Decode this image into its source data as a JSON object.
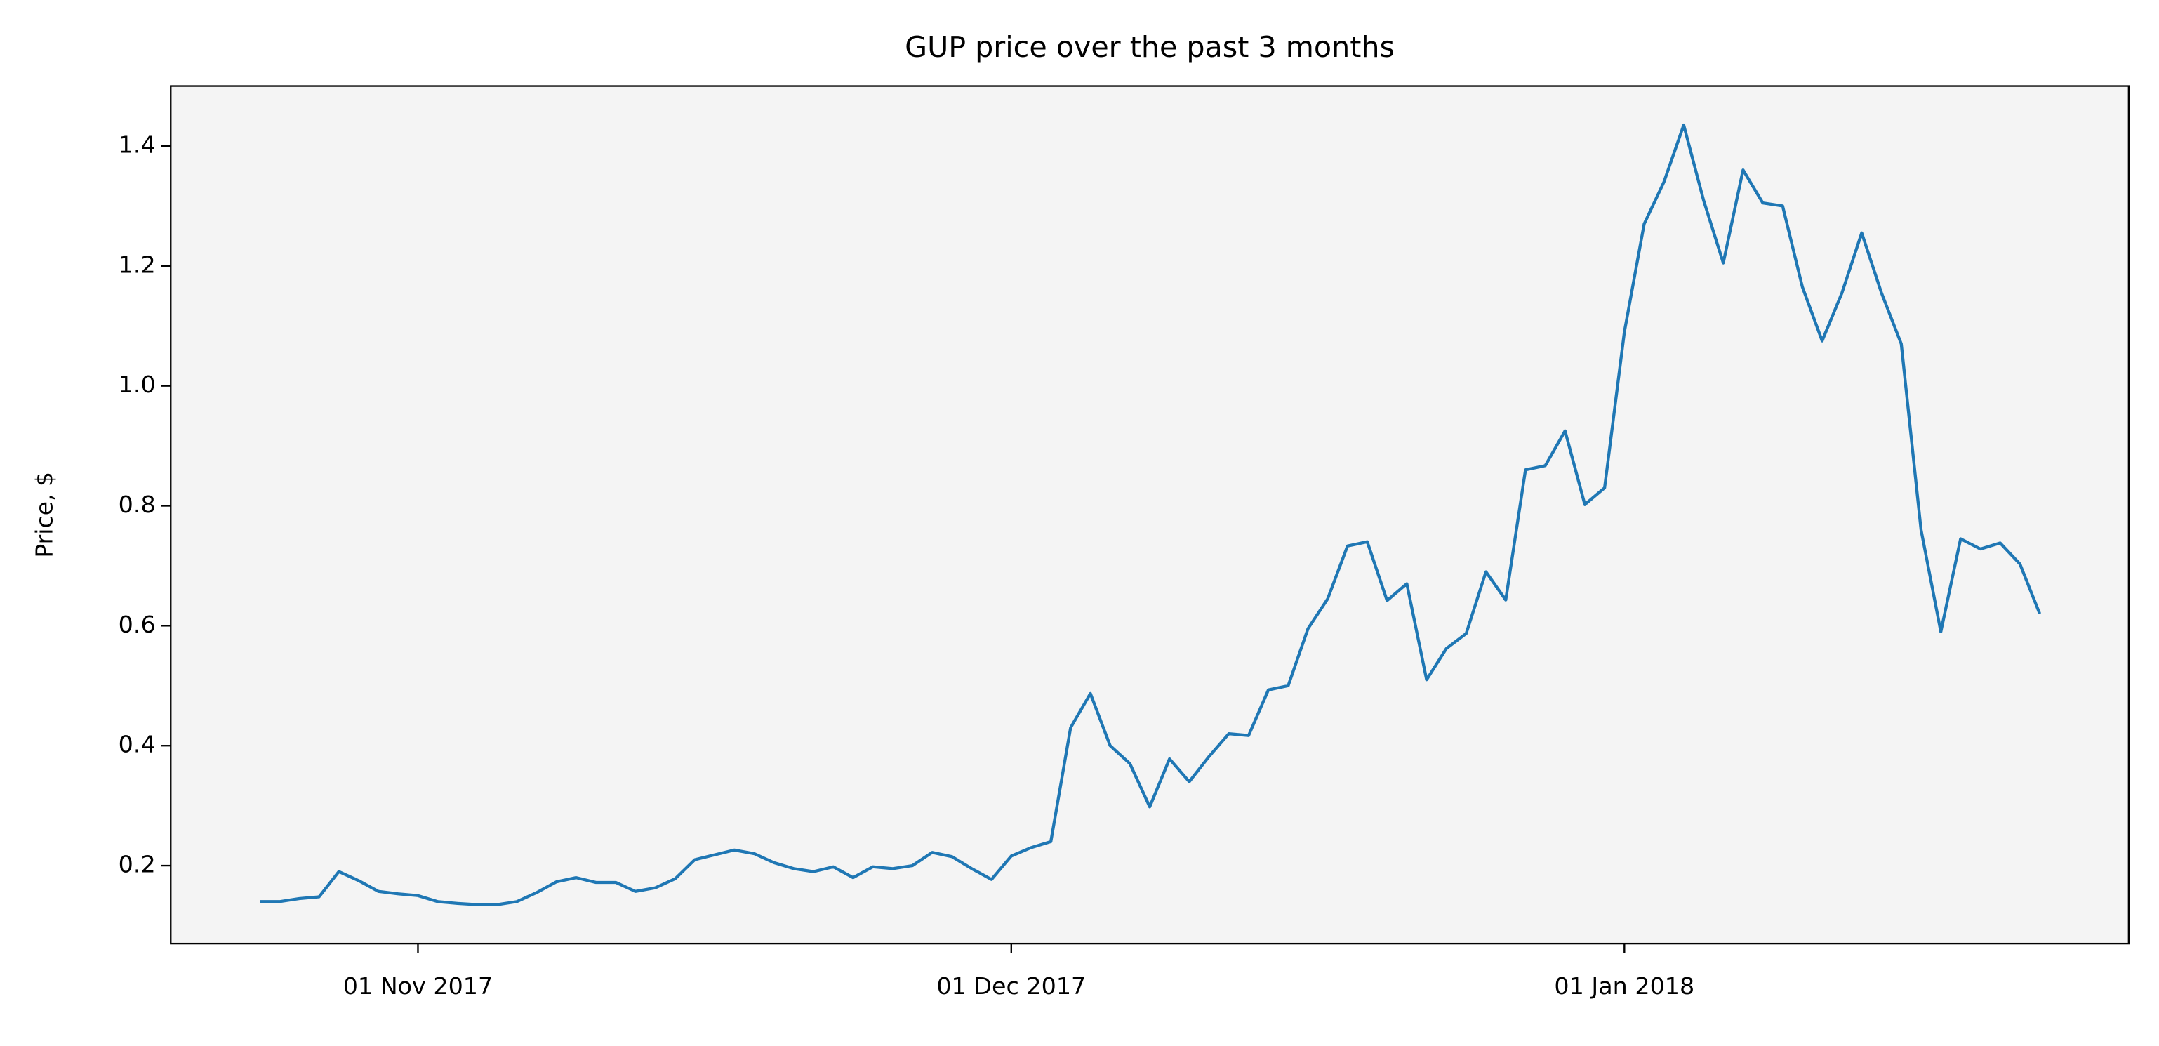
{
  "chart_data": {
    "type": "line",
    "title": "GUP price over the past 3 months",
    "y_label": "Price, $",
    "x": [
      "2017-10-24",
      "2017-10-25",
      "2017-10-26",
      "2017-10-27",
      "2017-10-28",
      "2017-10-29",
      "2017-10-30",
      "2017-10-31",
      "2017-11-01",
      "2017-11-02",
      "2017-11-03",
      "2017-11-04",
      "2017-11-05",
      "2017-11-06",
      "2017-11-07",
      "2017-11-08",
      "2017-11-09",
      "2017-11-10",
      "2017-11-11",
      "2017-11-12",
      "2017-11-13",
      "2017-11-14",
      "2017-11-15",
      "2017-11-16",
      "2017-11-17",
      "2017-11-18",
      "2017-11-19",
      "2017-11-20",
      "2017-11-21",
      "2017-11-22",
      "2017-11-23",
      "2017-11-24",
      "2017-11-25",
      "2017-11-26",
      "2017-11-27",
      "2017-11-28",
      "2017-11-29",
      "2017-11-30",
      "2017-12-01",
      "2017-12-02",
      "2017-12-03",
      "2017-12-04",
      "2017-12-05",
      "2017-12-06",
      "2017-12-07",
      "2017-12-08",
      "2017-12-09",
      "2017-12-10",
      "2017-12-11",
      "2017-12-12",
      "2017-12-13",
      "2017-12-14",
      "2017-12-15",
      "2017-12-16",
      "2017-12-17",
      "2017-12-18",
      "2017-12-19",
      "2017-12-20",
      "2017-12-21",
      "2017-12-22",
      "2017-12-23",
      "2017-12-24",
      "2017-12-25",
      "2017-12-26",
      "2017-12-27",
      "2017-12-28",
      "2017-12-29",
      "2017-12-30",
      "2017-12-31",
      "2018-01-01",
      "2018-01-02",
      "2018-01-03",
      "2018-01-04",
      "2018-01-05",
      "2018-01-06",
      "2018-01-07",
      "2018-01-08",
      "2018-01-09",
      "2018-01-10",
      "2018-01-11",
      "2018-01-12",
      "2018-01-13",
      "2018-01-14",
      "2018-01-15",
      "2018-01-16",
      "2018-01-17",
      "2018-01-18",
      "2018-01-19",
      "2018-01-20",
      "2018-01-21",
      "2018-01-22"
    ],
    "series": [
      {
        "color": "#1f77b4",
        "values": [
          0.14,
          0.14,
          0.145,
          0.148,
          0.19,
          0.175,
          0.157,
          0.153,
          0.15,
          0.14,
          0.137,
          0.135,
          0.135,
          0.14,
          0.155,
          0.173,
          0.18,
          0.172,
          0.172,
          0.157,
          0.163,
          0.178,
          0.21,
          0.218,
          0.226,
          0.22,
          0.205,
          0.195,
          0.19,
          0.198,
          0.18,
          0.198,
          0.195,
          0.2,
          0.222,
          0.215,
          0.195,
          0.177,
          0.216,
          0.23,
          0.24,
          0.43,
          0.487,
          0.4,
          0.37,
          0.298,
          0.378,
          0.34,
          0.382,
          0.42,
          0.417,
          0.493,
          0.5,
          0.595,
          0.645,
          0.733,
          0.74,
          0.642,
          0.67,
          0.51,
          0.562,
          0.587,
          0.69,
          0.643,
          0.86,
          0.867,
          0.925,
          0.802,
          0.83,
          1.09,
          1.27,
          1.34,
          1.435,
          1.31,
          1.205,
          1.36,
          1.305,
          1.3,
          1.165,
          1.075,
          1.155,
          1.255,
          1.155,
          1.07,
          0.76,
          0.59,
          0.745,
          0.728,
          0.738,
          0.703,
          0.62
        ]
      }
    ],
    "xlim": [
      "2017-10-19T12:00",
      "2018-01-26T12:00"
    ],
    "xticks": [
      {
        "value": "2017-11-01",
        "label": "01 Nov 2017"
      },
      {
        "value": "2017-12-01",
        "label": "01 Dec 2017"
      },
      {
        "value": "2018-01-01",
        "label": "01 Jan 2018"
      }
    ],
    "ylim": [
      0.07,
      1.5
    ],
    "yticks": [
      0.2,
      0.4,
      0.6,
      0.8,
      {
        "value": 1,
        "label": "1.0"
      },
      1.2,
      1.4
    ],
    "background": "#f4f4f4"
  }
}
